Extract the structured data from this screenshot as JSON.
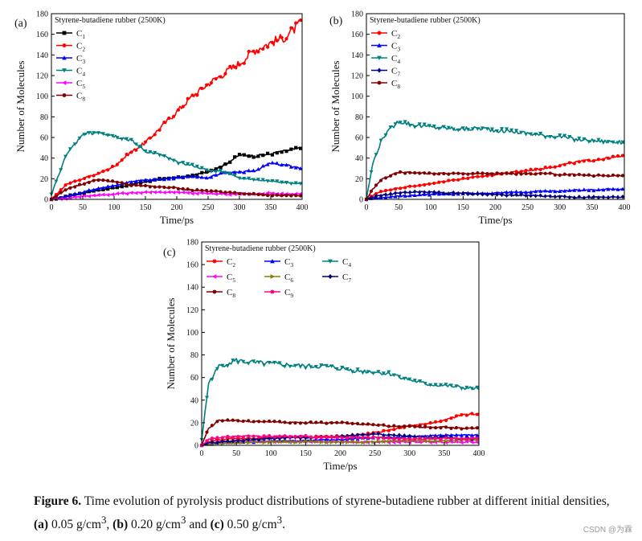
{
  "figure": {
    "caption_label": "Figure 6.",
    "caption_text_1": " Time evolution of pyrolysis product distributions of styrene-butadiene rubber at different initial densities, ",
    "caption_a": "(a)",
    "caption_a_val": " 0.05 g/cm",
    "caption_b": "(b)",
    "caption_b_val": " 0.20 g/cm",
    "caption_c": "(c)",
    "caption_c_val": " 0.50 g/cm",
    "caption_and": " and ",
    "caption_comma": ", ",
    "caption_sup": "3",
    "caption_end": ".",
    "credit": "CSDN @为霖"
  },
  "chart_data": [
    {
      "panel_label": "(a)",
      "type": "line",
      "title": "Styrene-butadiene rubber (2500K)",
      "xlabel": "Time/ps",
      "ylabel": "Number of Molecules",
      "xlim": [
        0,
        400
      ],
      "ylim": [
        0,
        180
      ],
      "xticks": [
        0,
        50,
        100,
        150,
        200,
        250,
        300,
        350,
        400
      ],
      "yticks": [
        0,
        20,
        40,
        60,
        80,
        100,
        120,
        140,
        160,
        180
      ],
      "x": [
        0,
        25,
        50,
        75,
        100,
        125,
        150,
        175,
        200,
        225,
        250,
        275,
        300,
        325,
        350,
        375,
        400
      ],
      "series": [
        {
          "name": "C",
          "sub": "1",
          "color": "#000000",
          "marker": "square",
          "values": [
            0,
            3,
            6,
            9,
            11,
            14,
            17,
            20,
            21,
            23,
            27,
            33,
            43,
            42,
            44,
            47,
            50
          ]
        },
        {
          "name": "C",
          "sub": "2",
          "color": "#ff0000",
          "marker": "circle",
          "values": [
            0,
            15,
            20,
            25,
            32,
            45,
            55,
            70,
            85,
            100,
            112,
            122,
            132,
            145,
            152,
            158,
            172
          ]
        },
        {
          "name": "C",
          "sub": "3",
          "color": "#0000ff",
          "marker": "triangle-up",
          "values": [
            0,
            3,
            7,
            11,
            13,
            17,
            19,
            19,
            21,
            22,
            21,
            26,
            26,
            28,
            35,
            33,
            30
          ]
        },
        {
          "name": "C",
          "sub": "4",
          "color": "#008080",
          "marker": "triangle-down",
          "values": [
            5,
            45,
            62,
            66,
            62,
            58,
            47,
            43,
            36,
            33,
            28,
            27,
            21,
            19,
            18,
            16,
            15
          ]
        },
        {
          "name": "C",
          "sub": "5",
          "color": "#ff00ff",
          "marker": "triangle-left",
          "values": [
            0,
            1,
            3,
            4,
            5,
            6,
            7,
            7,
            7,
            6,
            6,
            5,
            5,
            5,
            6,
            5,
            5
          ]
        },
        {
          "name": "C",
          "sub": "8",
          "color": "#800000",
          "marker": "circle",
          "values": [
            0,
            10,
            15,
            19,
            17,
            14,
            13,
            12,
            11,
            9,
            8,
            7,
            6,
            5,
            4,
            4,
            4
          ]
        }
      ]
    },
    {
      "panel_label": "(b)",
      "type": "line",
      "title": "Styrene-butadiene rubber (2500K)",
      "xlabel": "Time/ps",
      "ylabel": "Number of Molecules",
      "xlim": [
        0,
        400
      ],
      "ylim": [
        0,
        180
      ],
      "xticks": [
        0,
        50,
        100,
        150,
        200,
        250,
        300,
        350,
        400
      ],
      "yticks": [
        0,
        20,
        40,
        60,
        80,
        100,
        120,
        140,
        160,
        180
      ],
      "x": [
        0,
        10,
        25,
        50,
        75,
        100,
        125,
        150,
        175,
        200,
        225,
        250,
        275,
        300,
        325,
        350,
        375,
        400
      ],
      "series": [
        {
          "name": "C",
          "sub": "2",
          "color": "#ff0000",
          "marker": "circle",
          "values": [
            0,
            4,
            8,
            11,
            13,
            15,
            18,
            20,
            22,
            24,
            26,
            28,
            30,
            33,
            36,
            38,
            40,
            42
          ]
        },
        {
          "name": "C",
          "sub": "3",
          "color": "#0000ff",
          "marker": "triangle-up",
          "values": [
            0,
            1,
            2,
            3,
            4,
            5,
            5,
            6,
            6,
            6,
            7,
            7,
            8,
            8,
            9,
            9,
            10,
            10
          ]
        },
        {
          "name": "C",
          "sub": "4",
          "color": "#008080",
          "marker": "triangle-down",
          "values": [
            0,
            35,
            60,
            76,
            72,
            70,
            69,
            68,
            69,
            67,
            66,
            64,
            62,
            61,
            58,
            57,
            56,
            55
          ]
        },
        {
          "name": "C",
          "sub": "7",
          "color": "#000080",
          "marker": "diamond",
          "values": [
            0,
            2,
            4,
            6,
            7,
            7,
            6,
            6,
            5,
            5,
            4,
            4,
            3,
            3,
            2,
            2,
            2,
            2
          ]
        },
        {
          "name": "C",
          "sub": "8",
          "color": "#800000",
          "marker": "circle",
          "values": [
            0,
            10,
            20,
            26,
            26,
            25,
            25,
            25,
            25,
            25,
            25,
            25,
            25,
            24,
            24,
            23,
            23,
            23
          ]
        }
      ]
    },
    {
      "panel_label": "(c)",
      "type": "line",
      "title": "Styrene-butadiene rubber (2500K)",
      "xlabel": "Time/ps",
      "ylabel": "Number of Molecules",
      "xlim": [
        0,
        400
      ],
      "ylim": [
        0,
        180
      ],
      "xticks": [
        0,
        50,
        100,
        150,
        200,
        250,
        300,
        350,
        400
      ],
      "yticks": [
        0,
        20,
        40,
        60,
        80,
        100,
        120,
        140,
        160,
        180
      ],
      "x": [
        0,
        10,
        25,
        50,
        75,
        100,
        125,
        150,
        175,
        200,
        225,
        250,
        275,
        300,
        325,
        350,
        375,
        400
      ],
      "series": [
        {
          "name": "C",
          "sub": "2",
          "color": "#ff0000",
          "marker": "circle",
          "values": [
            0,
            3,
            5,
            6,
            6,
            7,
            7,
            7,
            8,
            8,
            9,
            11,
            14,
            17,
            19,
            22,
            27,
            28
          ]
        },
        {
          "name": "C",
          "sub": "3",
          "color": "#0000ff",
          "marker": "triangle-up",
          "values": [
            0,
            1,
            2,
            3,
            3,
            4,
            4,
            4,
            5,
            5,
            6,
            7,
            7,
            8,
            8,
            9,
            9,
            9
          ]
        },
        {
          "name": "C",
          "sub": "4",
          "color": "#008080",
          "marker": "triangle-down",
          "values": [
            5,
            55,
            70,
            75,
            73,
            72,
            71,
            70,
            70,
            68,
            66,
            65,
            63,
            58,
            54,
            53,
            51,
            50
          ]
        },
        {
          "name": "C",
          "sub": "5",
          "color": "#ff00ff",
          "marker": "triangle-left",
          "values": [
            0,
            2,
            3,
            3,
            3,
            3,
            3,
            3,
            3,
            3,
            3,
            3,
            3,
            3,
            3,
            3,
            3,
            3
          ]
        },
        {
          "name": "C",
          "sub": "6",
          "color": "#808000",
          "marker": "triangle-right",
          "values": [
            0,
            1,
            2,
            2,
            3,
            3,
            3,
            3,
            3,
            3,
            3,
            3,
            4,
            4,
            4,
            4,
            5,
            5
          ]
        },
        {
          "name": "C",
          "sub": "7",
          "color": "#000080",
          "marker": "diamond",
          "values": [
            0,
            2,
            3,
            4,
            5,
            6,
            7,
            7,
            7,
            8,
            9,
            10,
            9,
            8,
            7,
            7,
            6,
            6
          ]
        },
        {
          "name": "C",
          "sub": "8",
          "color": "#800000",
          "marker": "circle",
          "values": [
            0,
            15,
            22,
            22,
            21,
            21,
            20,
            20,
            20,
            20,
            19,
            18,
            17,
            17,
            16,
            16,
            15,
            15
          ]
        },
        {
          "name": "C",
          "sub": "9",
          "color": "#ff0080",
          "marker": "circle",
          "values": [
            0,
            5,
            7,
            8,
            8,
            8,
            8,
            8,
            7,
            7,
            7,
            7,
            6,
            6,
            6,
            6,
            6,
            6
          ]
        }
      ]
    }
  ]
}
